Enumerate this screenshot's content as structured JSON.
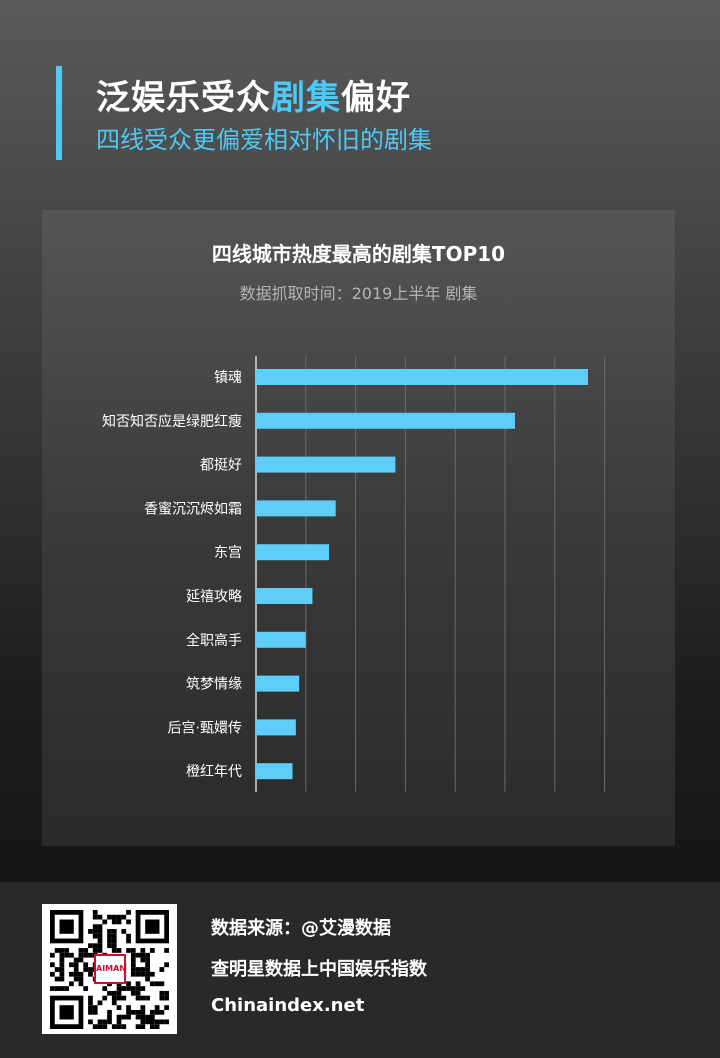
{
  "header": {
    "title_part1": "泛娱乐受众",
    "title_highlight": "剧集",
    "title_part2": "偏好",
    "subtitle": "四线受众更偏爱相对怀旧的剧集"
  },
  "chart_data": {
    "type": "bar",
    "orientation": "horizontal",
    "title": "四线城市热度最高的剧集TOP10",
    "subtitle": "数据抓取时间：2019上半年 剧集",
    "categories": [
      "镇魂",
      "知否知否应是绿肥红瘦",
      "都挺好",
      "香蜜沉沉烬如霜",
      "东宫",
      "延禧攻略",
      "全职高手",
      "筑梦情缘",
      "后宫·甄嬛传",
      "橙红年代"
    ],
    "values": [
      100,
      78,
      42,
      24,
      22,
      17,
      15,
      13,
      12,
      11
    ],
    "xlim": [
      0,
      140
    ],
    "grid": true,
    "xaxis_ticks_visible": false,
    "bar_color": "#5ecdf7"
  },
  "footer": {
    "source": "数据来源：@艾漫数据",
    "query": "查明星数据上中国娱乐指数",
    "site": "Chinaindex.net",
    "qr_badge": "AIMAN"
  }
}
